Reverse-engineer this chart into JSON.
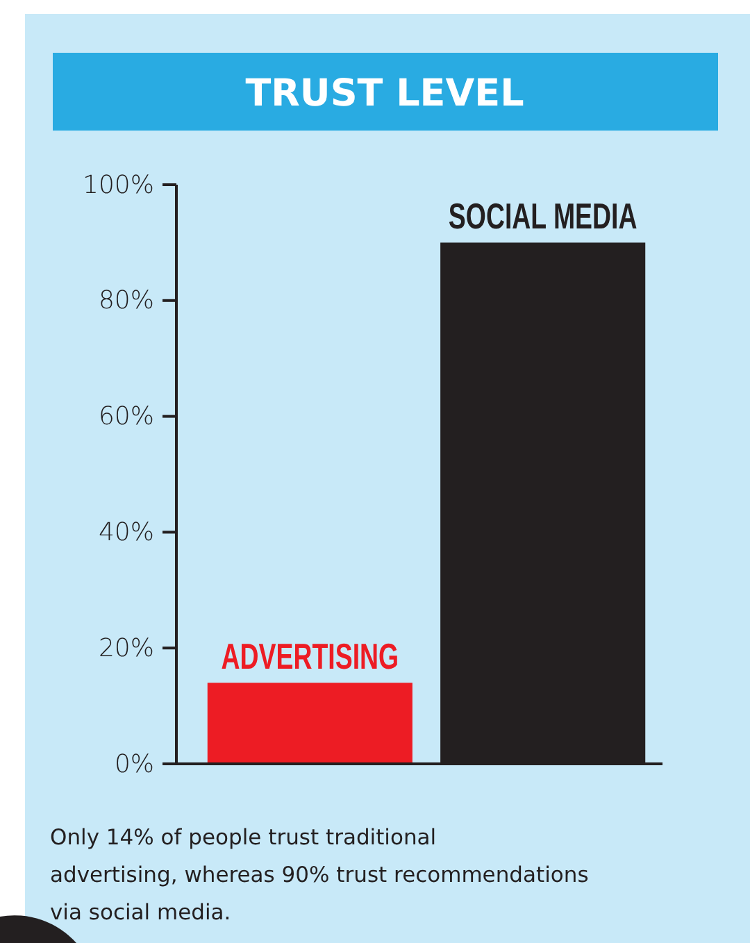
{
  "chart_data": {
    "type": "bar",
    "title": "TRUST LEVEL",
    "categories": [
      "ADVERTISING",
      "SOCIAL MEDIA"
    ],
    "values": [
      14,
      90
    ],
    "colors": [
      "#ed1c24",
      "#231f20"
    ],
    "ylim": [
      0,
      100
    ],
    "yticks": [
      {
        "value": 0,
        "label": "0%"
      },
      {
        "value": 20,
        "label": "20%"
      },
      {
        "value": 40,
        "label": "40%"
      },
      {
        "value": 60,
        "label": "60%"
      },
      {
        "value": 80,
        "label": "80%"
      },
      {
        "value": 100,
        "label": "100%"
      }
    ],
    "grid": false,
    "annotations": [
      "Only 14% of people trust traditional advertising, whereas 90% trust recommendations via social media."
    ]
  }
}
